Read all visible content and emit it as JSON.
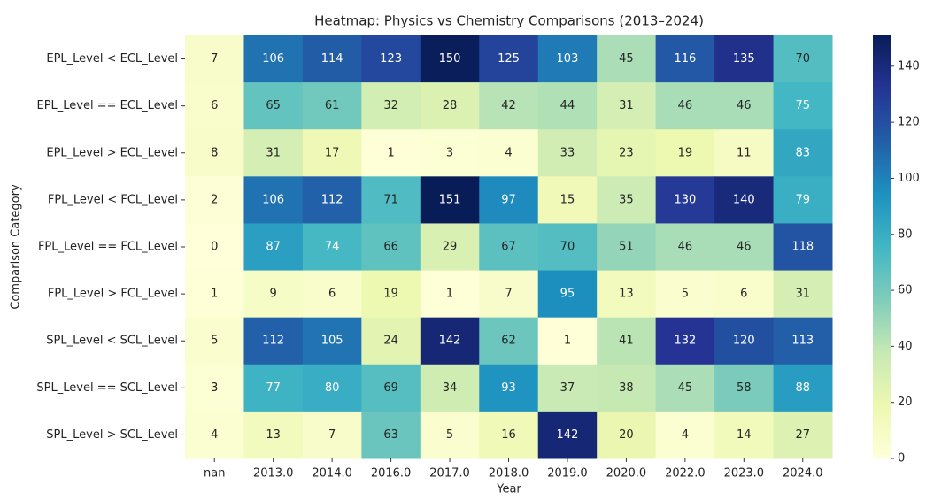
{
  "chart_data": {
    "type": "heatmap",
    "title": "Heatmap: Physics vs Chemistry Comparisons (2013–2024)",
    "x_label": "Year",
    "y_label": "Comparison Category",
    "x_categories": [
      "nan",
      "2013.0",
      "2014.0",
      "2016.0",
      "2017.0",
      "2018.0",
      "2019.0",
      "2020.0",
      "2022.0",
      "2023.0",
      "2024.0"
    ],
    "y_categories": [
      "EPL_Level < ECL_Level",
      "EPL_Level == ECL_Level",
      "EPL_Level > ECL_Level",
      "FPL_Level < FCL_Level",
      "FPL_Level == FCL_Level",
      "FPL_Level > FCL_Level",
      "SPL_Level < SCL_Level",
      "SPL_Level == SCL_Level",
      "SPL_Level > SCL_Level"
    ],
    "values": [
      [
        7,
        106,
        114,
        123,
        150,
        125,
        103,
        45,
        116,
        135,
        70
      ],
      [
        6,
        65,
        61,
        32,
        28,
        42,
        44,
        31,
        46,
        46,
        75
      ],
      [
        8,
        31,
        17,
        1,
        3,
        4,
        33,
        23,
        19,
        11,
        83
      ],
      [
        2,
        106,
        112,
        71,
        151,
        97,
        15,
        35,
        130,
        140,
        79
      ],
      [
        0,
        87,
        74,
        66,
        29,
        67,
        70,
        51,
        46,
        46,
        118
      ],
      [
        1,
        9,
        6,
        19,
        1,
        7,
        95,
        13,
        5,
        6,
        31
      ],
      [
        5,
        112,
        105,
        24,
        142,
        62,
        1,
        41,
        132,
        120,
        113
      ],
      [
        3,
        77,
        80,
        69,
        34,
        93,
        37,
        38,
        45,
        58,
        88
      ],
      [
        4,
        13,
        7,
        63,
        5,
        16,
        142,
        20,
        4,
        14,
        27
      ]
    ],
    "colormap": "YlGnBu",
    "clim": [
      0,
      151
    ],
    "cticks": [
      0,
      20,
      40,
      60,
      80,
      100,
      120,
      140
    ]
  }
}
